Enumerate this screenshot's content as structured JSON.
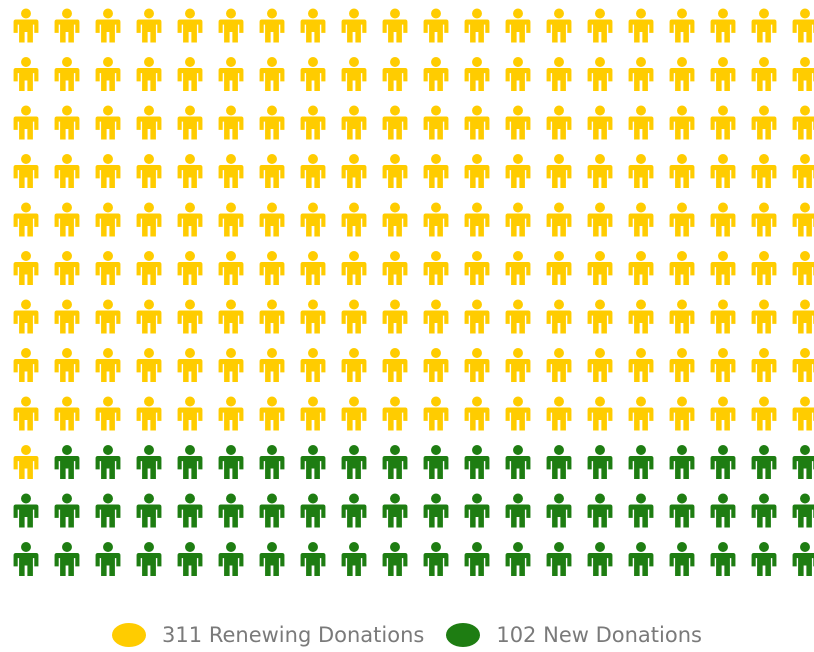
{
  "chart_data": {
    "type": "pictogram",
    "series": [
      {
        "name": "Renewing Donations",
        "value": 311,
        "color": "#ffcc00"
      },
      {
        "name": "New Donations",
        "value": 102,
        "color": "#1e7d12"
      }
    ],
    "legend": {
      "position": "bottom",
      "items": [
        {
          "count": "311",
          "label": "Renewing Donations",
          "color": "#ffcc00"
        },
        {
          "count": "102",
          "label": "New Donations",
          "color": "#1e7d12"
        }
      ]
    },
    "icon": "person-icon",
    "grid_on": false
  }
}
